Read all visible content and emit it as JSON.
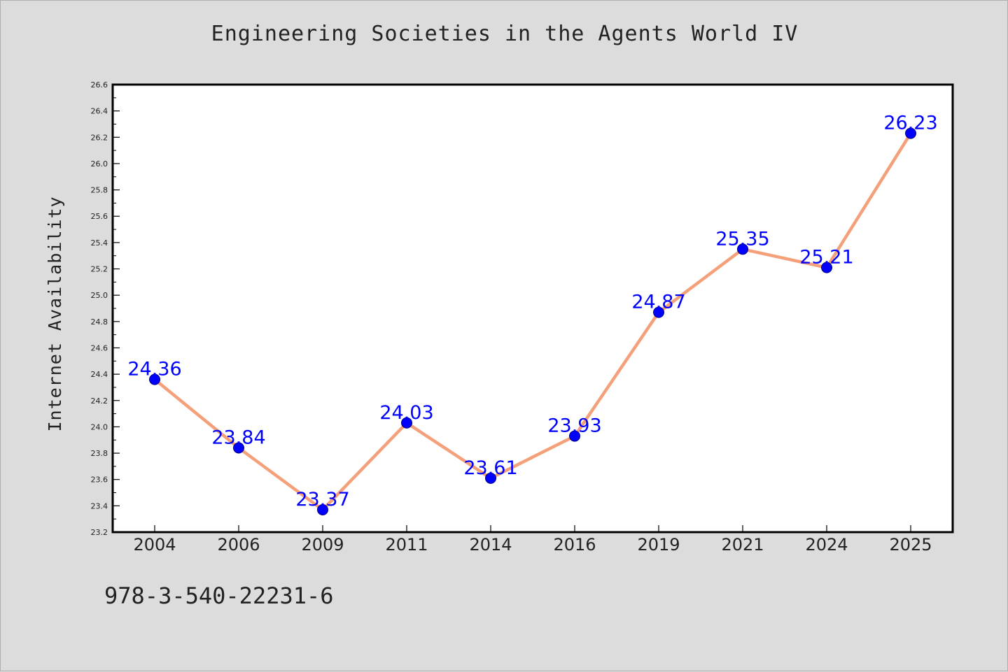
{
  "chart_data": {
    "type": "line",
    "title": "Engineering Societies in the Agents World IV",
    "xlabel": "",
    "ylabel": "Internet Availability",
    "categories": [
      "2004",
      "2006",
      "2009",
      "2011",
      "2014",
      "2016",
      "2019",
      "2021",
      "2024",
      "2025"
    ],
    "series": [
      {
        "values": [
          24.36,
          23.84,
          23.37,
          24.03,
          23.61,
          23.93,
          24.87,
          25.35,
          25.21,
          26.23
        ]
      }
    ],
    "data_labels": [
      "24.36",
      "23.84",
      "23.37",
      "24.03",
      "23.61",
      "23.93",
      "24.87",
      "25.35",
      "25.21",
      "26.23"
    ],
    "ylim": [
      23.2,
      26.6
    ],
    "yticks": [
      23.2,
      23.4,
      23.6,
      23.8,
      24.0,
      24.2,
      24.4,
      24.6,
      24.8,
      25.0,
      25.2,
      25.4,
      25.6,
      25.8,
      26.0,
      26.2,
      26.4,
      26.6
    ],
    "ytick_labels": [
      "23.2",
      "23.4",
      "23.6",
      "23.8",
      "24.0",
      "24.2",
      "24.4",
      "24.6",
      "24.8",
      "25.0",
      "25.2",
      "25.4",
      "25.6",
      "25.8",
      "26.0",
      "26.2",
      "26.4",
      "26.6"
    ],
    "grid": false,
    "legend": "none",
    "colors": {
      "line": "#f4a07a",
      "marker": "#0000ff",
      "marker_edge": "#000080",
      "label": "#0000ff",
      "background": "#dcdcdc",
      "plot_area": "#ffffff"
    }
  },
  "footer": {
    "isbn": "978-3-540-22231-6"
  }
}
